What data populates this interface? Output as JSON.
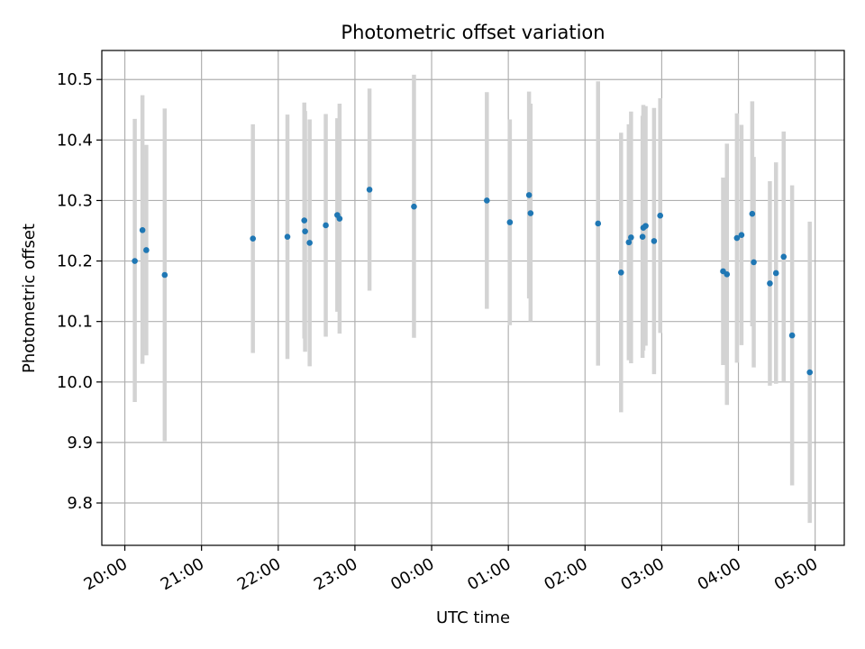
{
  "chart_data": {
    "type": "scatter",
    "title": "Photometric offset variation",
    "xlabel": "UTC time",
    "ylabel": "Photometric offset",
    "grid": true,
    "xlim_hours": [
      19.7,
      29.38
    ],
    "ylim": [
      9.73,
      10.548
    ],
    "x_ticks": [
      {
        "value": 20,
        "label": "20:00"
      },
      {
        "value": 21,
        "label": "21:00"
      },
      {
        "value": 22,
        "label": "22:00"
      },
      {
        "value": 23,
        "label": "23:00"
      },
      {
        "value": 24,
        "label": "00:00"
      },
      {
        "value": 25,
        "label": "01:00"
      },
      {
        "value": 26,
        "label": "02:00"
      },
      {
        "value": 27,
        "label": "03:00"
      },
      {
        "value": 28,
        "label": "04:00"
      },
      {
        "value": 29,
        "label": "05:00"
      }
    ],
    "y_ticks": [
      {
        "value": 9.8,
        "label": "9.8"
      },
      {
        "value": 9.9,
        "label": "9.9"
      },
      {
        "value": 10.0,
        "label": "10.0"
      },
      {
        "value": 10.1,
        "label": "10.1"
      },
      {
        "value": 10.2,
        "label": "10.2"
      },
      {
        "value": 10.3,
        "label": "10.3"
      },
      {
        "value": 10.4,
        "label": "10.4"
      },
      {
        "value": 10.5,
        "label": "10.5"
      }
    ],
    "colors": {
      "point": "#1f77b4",
      "errorbar": "#d3d3d3",
      "grid": "#b0b0b0",
      "axes": "#000000"
    },
    "series": [
      {
        "name": "Photometric offset",
        "points": [
          {
            "t": 20.13,
            "y": 10.2,
            "lo": 9.967,
            "hi": 10.435
          },
          {
            "t": 20.23,
            "y": 10.251,
            "lo": 10.03,
            "hi": 10.474
          },
          {
            "t": 20.28,
            "y": 10.218,
            "lo": 10.044,
            "hi": 10.392
          },
          {
            "t": 20.52,
            "y": 10.177,
            "lo": 9.902,
            "hi": 10.452
          },
          {
            "t": 21.67,
            "y": 10.237,
            "lo": 10.048,
            "hi": 10.426
          },
          {
            "t": 22.12,
            "y": 10.24,
            "lo": 10.038,
            "hi": 10.442
          },
          {
            "t": 22.34,
            "y": 10.267,
            "lo": 10.072,
            "hi": 10.462
          },
          {
            "t": 22.35,
            "y": 10.249,
            "lo": 10.05,
            "hi": 10.448
          },
          {
            "t": 22.41,
            "y": 10.23,
            "lo": 10.026,
            "hi": 10.434
          },
          {
            "t": 22.62,
            "y": 10.259,
            "lo": 10.075,
            "hi": 10.443
          },
          {
            "t": 22.77,
            "y": 10.276,
            "lo": 10.116,
            "hi": 10.436
          },
          {
            "t": 22.8,
            "y": 10.27,
            "lo": 10.08,
            "hi": 10.46
          },
          {
            "t": 23.19,
            "y": 10.318,
            "lo": 10.151,
            "hi": 10.485
          },
          {
            "t": 23.77,
            "y": 10.29,
            "lo": 10.073,
            "hi": 10.508
          },
          {
            "t": 24.72,
            "y": 10.3,
            "lo": 10.121,
            "hi": 10.479
          },
          {
            "t": 25.02,
            "y": 10.264,
            "lo": 10.094,
            "hi": 10.434
          },
          {
            "t": 25.27,
            "y": 10.309,
            "lo": 10.138,
            "hi": 10.48
          },
          {
            "t": 25.29,
            "y": 10.279,
            "lo": 10.1,
            "hi": 10.46
          },
          {
            "t": 26.17,
            "y": 10.262,
            "lo": 10.027,
            "hi": 10.497
          },
          {
            "t": 26.47,
            "y": 10.181,
            "lo": 9.95,
            "hi": 10.412
          },
          {
            "t": 26.57,
            "y": 10.231,
            "lo": 10.036,
            "hi": 10.426
          },
          {
            "t": 26.6,
            "y": 10.239,
            "lo": 10.031,
            "hi": 10.447
          },
          {
            "t": 26.75,
            "y": 10.24,
            "lo": 10.04,
            "hi": 10.44
          },
          {
            "t": 26.76,
            "y": 10.255,
            "lo": 10.052,
            "hi": 10.458
          },
          {
            "t": 26.79,
            "y": 10.258,
            "lo": 10.06,
            "hi": 10.456
          },
          {
            "t": 26.9,
            "y": 10.233,
            "lo": 10.013,
            "hi": 10.453
          },
          {
            "t": 26.98,
            "y": 10.275,
            "lo": 10.081,
            "hi": 10.469
          },
          {
            "t": 27.8,
            "y": 10.183,
            "lo": 10.028,
            "hi": 10.338
          },
          {
            "t": 27.85,
            "y": 10.178,
            "lo": 9.962,
            "hi": 10.394
          },
          {
            "t": 27.98,
            "y": 10.238,
            "lo": 10.032,
            "hi": 10.444
          },
          {
            "t": 28.04,
            "y": 10.243,
            "lo": 10.061,
            "hi": 10.425
          },
          {
            "t": 28.18,
            "y": 10.278,
            "lo": 10.092,
            "hi": 10.464
          },
          {
            "t": 28.2,
            "y": 10.198,
            "lo": 10.024,
            "hi": 10.372
          },
          {
            "t": 28.41,
            "y": 10.163,
            "lo": 9.994,
            "hi": 10.332
          },
          {
            "t": 28.49,
            "y": 10.18,
            "lo": 9.997,
            "hi": 10.363
          },
          {
            "t": 28.59,
            "y": 10.207,
            "lo": 10.0,
            "hi": 10.414
          },
          {
            "t": 28.7,
            "y": 10.077,
            "lo": 9.829,
            "hi": 10.325
          },
          {
            "t": 28.93,
            "y": 10.016,
            "lo": 9.767,
            "hi": 10.265
          }
        ]
      }
    ]
  }
}
